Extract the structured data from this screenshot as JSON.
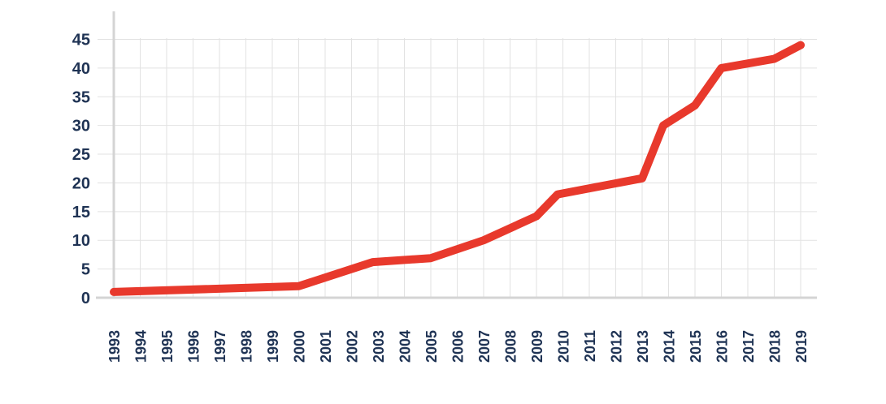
{
  "chart_data": {
    "type": "line",
    "title": "",
    "xlabel": "",
    "ylabel": "",
    "x": [
      "1993",
      "1994",
      "1995",
      "1996",
      "1997",
      "1998",
      "1999",
      "2000",
      "2001",
      "2002",
      "2003",
      "2004",
      "2005",
      "2006",
      "2007",
      "2008",
      "2009",
      "2010",
      "2011",
      "2012",
      "2013",
      "2014",
      "2015",
      "2016",
      "2017",
      "2018",
      "2019"
    ],
    "x_tick_labels": [
      "1993",
      "1994",
      "1995",
      "1996",
      "1997",
      "1998",
      "1999",
      "2000",
      "2001",
      "2002",
      "2003",
      "2004",
      "2005",
      "2006",
      "2007",
      "2008",
      "2009",
      "2010",
      "2011",
      "2012",
      "2013",
      "2014",
      "2015",
      "2016",
      "2017",
      "2018",
      "2019"
    ],
    "y_ticks": [
      0,
      5,
      10,
      15,
      20,
      25,
      30,
      35,
      40,
      45
    ],
    "ylim": [
      0,
      45
    ],
    "grid": true,
    "series": [
      {
        "points": [
          {
            "x": 1993.0,
            "y": 1.0
          },
          {
            "x": 2000.0,
            "y": 2.0
          },
          {
            "x": 2002.8,
            "y": 6.2
          },
          {
            "x": 2005.0,
            "y": 6.9
          },
          {
            "x": 2007.0,
            "y": 10.0
          },
          {
            "x": 2009.0,
            "y": 14.2
          },
          {
            "x": 2009.8,
            "y": 18.0
          },
          {
            "x": 2013.0,
            "y": 20.8
          },
          {
            "x": 2013.8,
            "y": 30.0
          },
          {
            "x": 2015.0,
            "y": 33.5
          },
          {
            "x": 2016.0,
            "y": 40.0
          },
          {
            "x": 2018.0,
            "y": 41.6
          },
          {
            "x": 2019.0,
            "y": 44.0
          }
        ],
        "color": "#e8392c"
      }
    ],
    "colors": {
      "line": "#e8392c",
      "grid": "#e2e2e2",
      "axis": "#d4d4d4",
      "text": "#1f3354"
    }
  }
}
